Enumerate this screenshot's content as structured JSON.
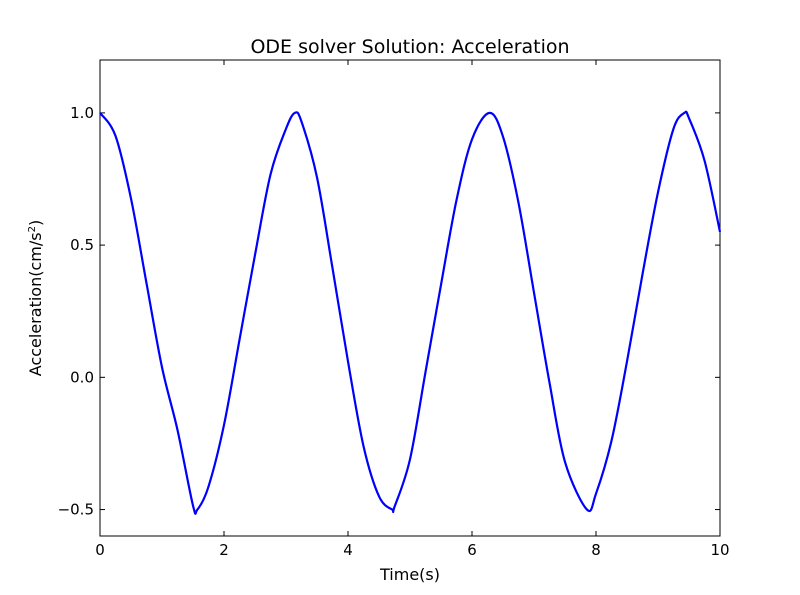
{
  "chart_data": {
    "type": "line",
    "title": "ODE solver Solution: Acceleration",
    "xlabel": "Time(s)",
    "ylabel_base": "Acceleration(cm/s",
    "ylabel_sup": "2",
    "ylabel_end": ")",
    "xlim": [
      0,
      10
    ],
    "ylim": [
      -0.6,
      1.2
    ],
    "xticks": [
      0,
      2,
      4,
      6,
      8,
      10
    ],
    "xtick_labels": [
      "0",
      "2",
      "4",
      "6",
      "8",
      "10"
    ],
    "yticks": [
      -0.5,
      0.0,
      0.5,
      1.0
    ],
    "ytick_labels": [
      "−0.5",
      "0.0",
      "0.5",
      "1.0"
    ],
    "grid": false,
    "series_color": "#0000ff",
    "series": [
      {
        "x": [
          0.0,
          0.25,
          0.5,
          0.75,
          1.0,
          1.25,
          1.5,
          1.571,
          1.75,
          2.0,
          2.25,
          2.5,
          2.75,
          3.0,
          3.142,
          3.25,
          3.5,
          3.75,
          4.0,
          4.25,
          4.5,
          4.712,
          4.75,
          5.0,
          5.25,
          5.5,
          5.75,
          6.0,
          6.283,
          6.5,
          6.75,
          7.0,
          7.25,
          7.5,
          7.854,
          8.0,
          8.25,
          8.5,
          8.75,
          9.0,
          9.25,
          9.425,
          9.5,
          9.75,
          10.0
        ],
        "y": [
          1.0,
          0.913,
          0.676,
          0.356,
          0.038,
          -0.199,
          -0.485,
          -0.5,
          -0.413,
          -0.18,
          0.142,
          0.463,
          0.767,
          0.94,
          1.0,
          0.967,
          0.756,
          0.413,
          0.06,
          -0.26,
          -0.45,
          -0.5,
          -0.49,
          -0.31,
          0.02,
          0.35,
          0.67,
          0.9,
          1.0,
          0.91,
          0.66,
          0.32,
          -0.02,
          -0.32,
          -0.5,
          -0.44,
          -0.24,
          0.06,
          0.39,
          0.7,
          0.94,
          1.0,
          0.98,
          0.82,
          0.55
        ]
      }
    ]
  }
}
